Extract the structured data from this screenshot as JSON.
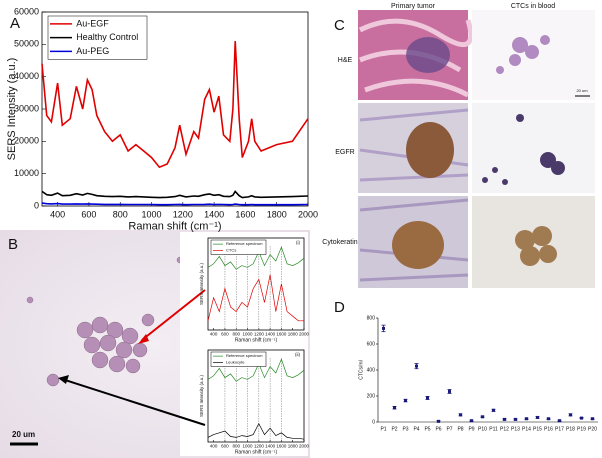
{
  "figure": {
    "panel_labels": [
      "A",
      "B",
      "C",
      "D"
    ],
    "panel_b": {
      "scale_bar": "20 um"
    },
    "panel_c": {
      "columns": [
        "Primary tumor",
        "CTCs in blood"
      ],
      "rows": [
        "H&E",
        "EGFR",
        "Cytokeratin"
      ],
      "scale_bar": "20 um"
    }
  },
  "chart_data": [
    {
      "type": "line",
      "x": [
        300,
        330,
        360,
        400,
        430,
        480,
        520,
        560,
        590,
        620,
        650,
        700,
        750,
        800,
        850,
        900,
        950,
        1000,
        1050,
        1100,
        1150,
        1180,
        1220,
        1270,
        1300,
        1340,
        1370,
        1400,
        1430,
        1460,
        1500,
        1520,
        1535,
        1560,
        1580,
        1620,
        1640,
        1660,
        1700,
        1800,
        1900,
        2000
      ],
      "series": [
        {
          "name": "Au-EGF",
          "color": "#e00000",
          "values": [
            44000,
            28000,
            26000,
            38000,
            25000,
            27000,
            37000,
            30000,
            39000,
            36000,
            28000,
            23000,
            20000,
            22000,
            17000,
            19000,
            17000,
            15000,
            12000,
            13000,
            18000,
            25000,
            16000,
            23000,
            21000,
            33000,
            36000,
            29000,
            34000,
            22000,
            20000,
            30000,
            51000,
            27000,
            15000,
            20000,
            27000,
            20000,
            17000,
            19000,
            20000,
            27000
          ]
        },
        {
          "name": "Healthy Control",
          "color": "#000000",
          "values": [
            4500,
            3500,
            3300,
            4000,
            3200,
            3300,
            3800,
            3400,
            3900,
            3600,
            3200,
            3000,
            2900,
            3000,
            2800,
            2900,
            2800,
            2700,
            2600,
            2700,
            2900,
            3300,
            2800,
            3100,
            3000,
            3500,
            3700,
            3300,
            3500,
            3000,
            2900,
            3300,
            4500,
            3200,
            2600,
            2800,
            3200,
            2800,
            2700,
            2800,
            2900,
            3100
          ]
        },
        {
          "name": "Au-PEG",
          "color": "#0000dd",
          "values": [
            900,
            700,
            650,
            750,
            600,
            600,
            650,
            600,
            650,
            600,
            550,
            500,
            500,
            500,
            450,
            450,
            450,
            450,
            400,
            400,
            450,
            500,
            400,
            450,
            450,
            500,
            550,
            450,
            500,
            450,
            400,
            450,
            600,
            450,
            400,
            400,
            450,
            400,
            400,
            400,
            400,
            450
          ]
        }
      ],
      "xlim": [
        300,
        2000
      ],
      "ylim": [
        0,
        60000
      ],
      "xticks": [
        400,
        600,
        800,
        1000,
        1200,
        1400,
        1600,
        1800,
        2000
      ],
      "yticks": [
        0,
        10000,
        20000,
        30000,
        40000,
        50000,
        60000
      ],
      "xlabel": "Raman shift (cm⁻¹)",
      "ylabel": "SERS Intensity (a.u.)",
      "legend": "upper left"
    },
    {
      "type": "line",
      "title": "(i)",
      "x": [
        300,
        400,
        500,
        600,
        700,
        800,
        900,
        1000,
        1100,
        1200,
        1300,
        1400,
        1500,
        1600,
        1700,
        1800,
        1900,
        2000
      ],
      "series": [
        {
          "name": "Reference spectrum",
          "color": "#2a8a2a",
          "values": [
            0.68,
            0.72,
            0.8,
            0.7,
            0.74,
            0.66,
            0.7,
            0.68,
            0.72,
            0.85,
            0.7,
            0.82,
            0.75,
            0.9,
            0.72,
            0.7,
            0.73,
            0.78
          ]
        },
        {
          "name": "CTCs",
          "color": "#e00000",
          "values": [
            0.1,
            0.35,
            0.2,
            0.45,
            0.25,
            0.2,
            0.3,
            0.25,
            0.45,
            0.55,
            0.3,
            0.6,
            0.2,
            0.5,
            0.2,
            0.15,
            0.1,
            0.1
          ]
        }
      ],
      "xlim": [
        300,
        2000
      ],
      "ylim": [
        0,
        1
      ],
      "xticks": [
        400,
        600,
        800,
        1000,
        1200,
        1400,
        1600,
        1800,
        2000
      ],
      "xlabel": "Raman shift (cm⁻¹)",
      "ylabel": "SERS Intensity (a.u.)",
      "legend": "upper left"
    },
    {
      "type": "line",
      "title": "(ii)",
      "x": [
        300,
        400,
        500,
        600,
        700,
        800,
        900,
        1000,
        1100,
        1200,
        1300,
        1400,
        1500,
        1600,
        1700,
        1800,
        1900,
        2000
      ],
      "series": [
        {
          "name": "Reference spectrum",
          "color": "#2a8a2a",
          "values": [
            0.68,
            0.72,
            0.8,
            0.7,
            0.74,
            0.66,
            0.7,
            0.68,
            0.72,
            0.85,
            0.7,
            0.82,
            0.75,
            0.9,
            0.72,
            0.7,
            0.73,
            0.78
          ]
        },
        {
          "name": "Leukocyte",
          "color": "#000000",
          "values": [
            0.05,
            0.08,
            0.1,
            0.12,
            0.06,
            0.05,
            0.07,
            0.06,
            0.08,
            0.2,
            0.08,
            0.15,
            0.07,
            0.1,
            0.05,
            0.04,
            0.04,
            0.03
          ]
        }
      ],
      "xlim": [
        300,
        2000
      ],
      "ylim": [
        0,
        1
      ],
      "xticks": [
        400,
        600,
        800,
        1000,
        1200,
        1400,
        1600,
        1800,
        2000
      ],
      "xlabel": "Raman shift (cm⁻¹)",
      "ylabel": "SERS Intensity (a.u.)",
      "legend": "upper left"
    },
    {
      "type": "errorbar",
      "categories": [
        "P1",
        "P2",
        "P3",
        "P4",
        "P5",
        "P6",
        "P7",
        "P8",
        "P9",
        "P10",
        "P11",
        "P12",
        "P13",
        "P14",
        "P15",
        "P16",
        "P17",
        "P18",
        "P19",
        "P20"
      ],
      "values": [
        720,
        110,
        165,
        430,
        185,
        5,
        235,
        55,
        10,
        40,
        90,
        20,
        20,
        25,
        35,
        25,
        10,
        55,
        30,
        25
      ],
      "errors": [
        25,
        10,
        10,
        20,
        12,
        5,
        15,
        8,
        5,
        6,
        8,
        5,
        5,
        5,
        6,
        5,
        5,
        8,
        5,
        5
      ],
      "color": "#1a1a7a",
      "ylim": [
        0,
        800
      ],
      "yticks": [
        0,
        200,
        400,
        600,
        800
      ],
      "ylabel": "CTCs/ml"
    }
  ]
}
